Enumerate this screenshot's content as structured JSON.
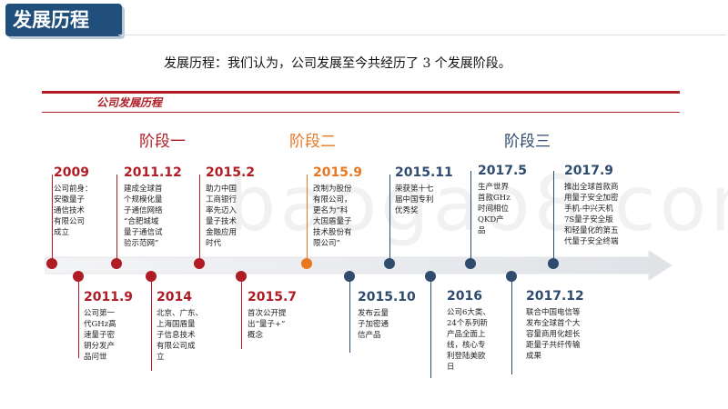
{
  "header": {
    "title": "发展历程"
  },
  "subtitle": "发展历程：我们认为，公司发展至今共经历了 3 个发展阶段。",
  "section_label": "公司发展历程",
  "phases": [
    "阶段一",
    "阶段二",
    "阶段三"
  ],
  "watermark": "baogao8.com",
  "colors": {
    "red": "#b01c24",
    "orange": "#e87722",
    "navy": "#2f4b6e",
    "title_bg": "#1f4f7a"
  },
  "events": [
    {
      "date": "2009",
      "lines": [
        "公司前身：",
        "安徽量子",
        "通信技术",
        "有限公司",
        "成立"
      ]
    },
    {
      "date": "2011.9",
      "lines": [
        "公司第一",
        "代GHz高",
        "速量子密",
        "钥分发产",
        "品问世"
      ]
    },
    {
      "date": "2011.12",
      "lines": [
        "建成全球首",
        "个规模化量",
        "子通信网络",
        "“合肥城域",
        "量子通信试",
        "验示范网”"
      ]
    },
    {
      "date": "2014",
      "lines": [
        "北京、广东、",
        "上海国盾量",
        "子信息技术",
        "有限公司成",
        "立"
      ]
    },
    {
      "date": "2015.2",
      "lines": [
        "助力中国",
        "工商银行",
        "率先迈入",
        "量子技术",
        "金融应用",
        "时代"
      ]
    },
    {
      "date": "2015.7",
      "lines": [
        "首次公开提",
        "出“量子+”",
        "概念"
      ]
    },
    {
      "date": "2015.9",
      "lines": [
        "改制为股份",
        "有限公司，",
        "更名为“科",
        "大国盾量子",
        "技术股份有",
        "限公司”"
      ]
    },
    {
      "date": "2015.10",
      "lines": [
        "发布云量",
        "子加密通",
        "信产品"
      ]
    },
    {
      "date": "2015.11",
      "lines": [
        "荣获第十七",
        "届中国专利",
        "优秀奖"
      ]
    },
    {
      "date": "2016",
      "lines": [
        "公司6大类、",
        "24个系列新",
        "产品全面上",
        "线，核心专",
        "利登陆美欧",
        "日"
      ]
    },
    {
      "date": "2017.5",
      "lines": [
        "生产世界",
        "首款GHz",
        "时间相位",
        "QKD产",
        "品"
      ]
    },
    {
      "date": "2017.12",
      "lines": [
        "联合中国电信等",
        "发布全球首个大",
        "容量商用化超长",
        "距量子共纤传输",
        "成果"
      ]
    },
    {
      "date": "2017.9",
      "lines": [
        "推出全球首款商",
        "用量子安全加密",
        "手机-中兴天机",
        "7S量子安全版",
        "和轻量化的第五",
        "代量子安全终端"
      ]
    }
  ]
}
